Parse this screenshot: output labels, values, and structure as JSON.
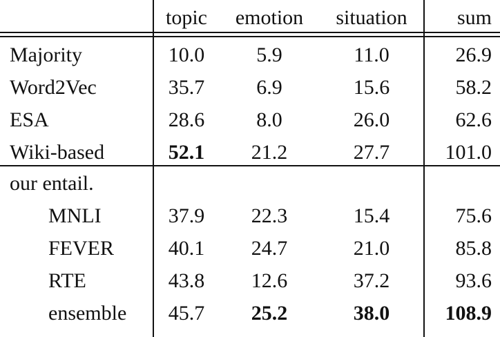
{
  "table": {
    "header": [
      null,
      "topic",
      "emotion",
      "situation",
      "sum"
    ],
    "rows": [
      [
        "Majority",
        "10.0",
        "5.9",
        "11.0",
        "26.9"
      ],
      [
        "Word2Vec",
        "35.7",
        "6.9",
        "15.6",
        "58.2"
      ],
      [
        "ESA",
        "28.6",
        "8.0",
        "26.0",
        "62.6"
      ],
      [
        "Wiki-based",
        "52.1",
        "21.2",
        "27.7",
        "101.0"
      ],
      [
        "our entail.",
        null,
        null,
        null,
        null
      ],
      [
        "MNLI",
        "37.9",
        "22.3",
        "15.4",
        "75.6"
      ],
      [
        "FEVER",
        "40.1",
        "24.7",
        "21.0",
        "85.8"
      ],
      [
        "RTE",
        "43.8",
        "12.6",
        "37.2",
        "93.6"
      ],
      [
        "ensemble",
        "45.7",
        "25.2",
        "38.0",
        "108.9"
      ]
    ],
    "bold_cells": [
      [
        3,
        1
      ],
      [
        8,
        2
      ],
      [
        8,
        3
      ],
      [
        8,
        4
      ]
    ],
    "indented_rows": [
      5,
      6,
      7,
      8
    ],
    "group_breaks": [
      3
    ]
  }
}
